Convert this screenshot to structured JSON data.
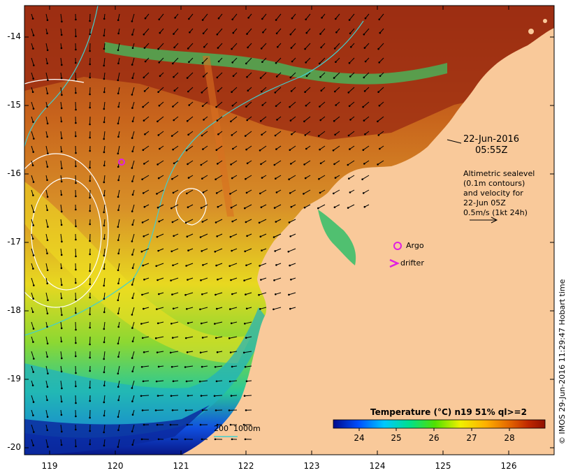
{
  "map": {
    "date_label": "22-Jun-2016",
    "time_label": "05:55Z",
    "altimetry_lines": [
      "Altimetric sealevel",
      "(0.1m contours)",
      "and velocity for",
      "22-Jun 05Z",
      "0.5m/s (1kt 24h)"
    ],
    "argo_label": "Argo",
    "drifter_label": "drifter",
    "depth_label": "200  1000m",
    "credit": "© IMOS 29-Jun-2016 11:29:47 Hobart time",
    "lat_ticks": [
      "-14",
      "-15",
      "-16",
      "-17",
      "-18",
      "-19",
      "-20"
    ],
    "lon_ticks": [
      "119",
      "120",
      "121",
      "122",
      "123",
      "124",
      "125",
      "126"
    ]
  },
  "colorbar": {
    "title": "Temperature (°C) n19 51% ql>=2",
    "ticks": [
      "24",
      "25",
      "26",
      "27",
      "28"
    ],
    "colors": [
      "#000a8c",
      "#0050ff",
      "#00c8ff",
      "#00e08c",
      "#50e000",
      "#f0f000",
      "#ffb000",
      "#e06000",
      "#c02800",
      "#901000"
    ]
  },
  "colors": {
    "land": "#f9c99a",
    "contour_depth": "#40d0d0",
    "sealevel_contour": "#ffffff",
    "argo": "#e020e0"
  }
}
